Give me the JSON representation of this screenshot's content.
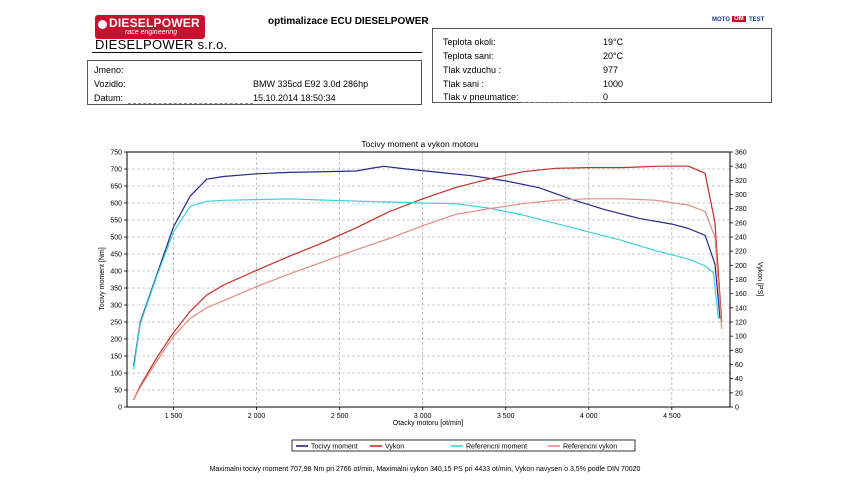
{
  "header": {
    "logo_brand": "DIESELPOWER",
    "logo_sub": "race engineering",
    "company": "DIESELPOWER s.r.o.",
    "title": "optimalizace ECU DIESELPOWER",
    "badge": [
      "MOTO",
      "OM",
      "TEST"
    ]
  },
  "info": {
    "jmeno_label": "Jmeno:",
    "jmeno_value": "",
    "vozidlo_label": "Vozidlo:",
    "vozidlo_value": "BMW 335cd E92 3.0d 286hp",
    "datum_label": "Datum:",
    "datum_value": "15.10.2014 18:50:34"
  },
  "conditions": [
    {
      "label": "Teplota okoli:",
      "value": "19°C"
    },
    {
      "label": "Teplota sani:",
      "value": "20°C"
    },
    {
      "label": "Tlak vzduchu :",
      "value": "977"
    },
    {
      "label": "Tlak sani :",
      "value": "1000"
    },
    {
      "label": "Tlak v pneumatice:",
      "value": "0"
    }
  ],
  "footer": "Maximalni tocivy moment 707,98 Nm pri 2766 ot/min,  Maximalni vykon 340,15 PS pri 4433 ot/min,  Vykon navysen o 3,5% podle DIN 70020",
  "chart_data": {
    "type": "line",
    "title": "Tocivy moment a vykon motoru",
    "xlabel": "Otacky motoru [ot/min]",
    "ylabel": "Tocivy moment [Nm]",
    "y2label": "Vykon [PS]",
    "xlim": [
      1220,
      4850
    ],
    "ylim": [
      0,
      750
    ],
    "y2lim": [
      0,
      360
    ],
    "xticks": [
      1500,
      2000,
      2500,
      3000,
      3500,
      4000,
      4500
    ],
    "xtick_labels": [
      "1 500",
      "2 000",
      "2 500",
      "3 000",
      "3 500",
      "4 000",
      "4 500"
    ],
    "yticks": [
      0,
      50,
      100,
      150,
      200,
      250,
      300,
      350,
      400,
      450,
      500,
      550,
      600,
      650,
      700,
      750
    ],
    "y2ticks": [
      0,
      20,
      40,
      60,
      80,
      100,
      120,
      140,
      160,
      180,
      200,
      220,
      240,
      260,
      280,
      300,
      320,
      340,
      360
    ],
    "grid": true,
    "legend_position": "bottom",
    "series": [
      {
        "name": "Tocivy moment",
        "axis": "left",
        "color": "#27288a",
        "x": [
          1260,
          1300,
          1400,
          1500,
          1600,
          1700,
          1800,
          2000,
          2200,
          2500,
          2600,
          2700,
          2766,
          2900,
          3100,
          3300,
          3500,
          3700,
          3900,
          4100,
          4300,
          4500,
          4600,
          4700,
          4760,
          4790
        ],
        "y": [
          120,
          250,
          390,
          530,
          620,
          670,
          678,
          686,
          690,
          693,
          694,
          703,
          708,
          700,
          690,
          680,
          665,
          645,
          610,
          580,
          555,
          538,
          525,
          505,
          420,
          260
        ]
      },
      {
        "name": "Vykon",
        "axis": "right",
        "color": "#c0302a",
        "x": [
          1260,
          1300,
          1400,
          1500,
          1600,
          1700,
          1800,
          2000,
          2200,
          2400,
          2600,
          2800,
          3000,
          3200,
          3400,
          3600,
          3800,
          4000,
          4200,
          4433,
          4600,
          4700,
          4760,
          4800
        ],
        "y": [
          10,
          30,
          70,
          105,
          135,
          158,
          172,
          193,
          213,
          232,
          253,
          276,
          294,
          310,
          322,
          332,
          337,
          338,
          338,
          340,
          340,
          330,
          260,
          120
        ]
      },
      {
        "name": "Referencni moment",
        "axis": "left",
        "color": "#3fd2d8",
        "x": [
          1260,
          1300,
          1400,
          1500,
          1600,
          1700,
          1800,
          2000,
          2200,
          2500,
          2800,
          3000,
          3200,
          3400,
          3600,
          3800,
          4000,
          4200,
          4400,
          4600,
          4700,
          4750,
          4780
        ],
        "y": [
          110,
          245,
          385,
          515,
          590,
          605,
          608,
          610,
          612,
          607,
          603,
          600,
          598,
          585,
          565,
          540,
          515,
          490,
          460,
          435,
          415,
          395,
          260
        ]
      },
      {
        "name": "Referencni vykon",
        "axis": "right",
        "color": "#e48a82",
        "x": [
          1260,
          1300,
          1400,
          1500,
          1600,
          1700,
          1800,
          2000,
          2200,
          2400,
          2600,
          2800,
          3000,
          3200,
          3400,
          3600,
          3800,
          4000,
          4200,
          4400,
          4600,
          4700,
          4760,
          4800
        ],
        "y": [
          10,
          28,
          65,
          100,
          125,
          140,
          150,
          170,
          188,
          205,
          222,
          238,
          256,
          272,
          280,
          287,
          292,
          294,
          294,
          292,
          285,
          276,
          240,
          110
        ]
      }
    ]
  }
}
